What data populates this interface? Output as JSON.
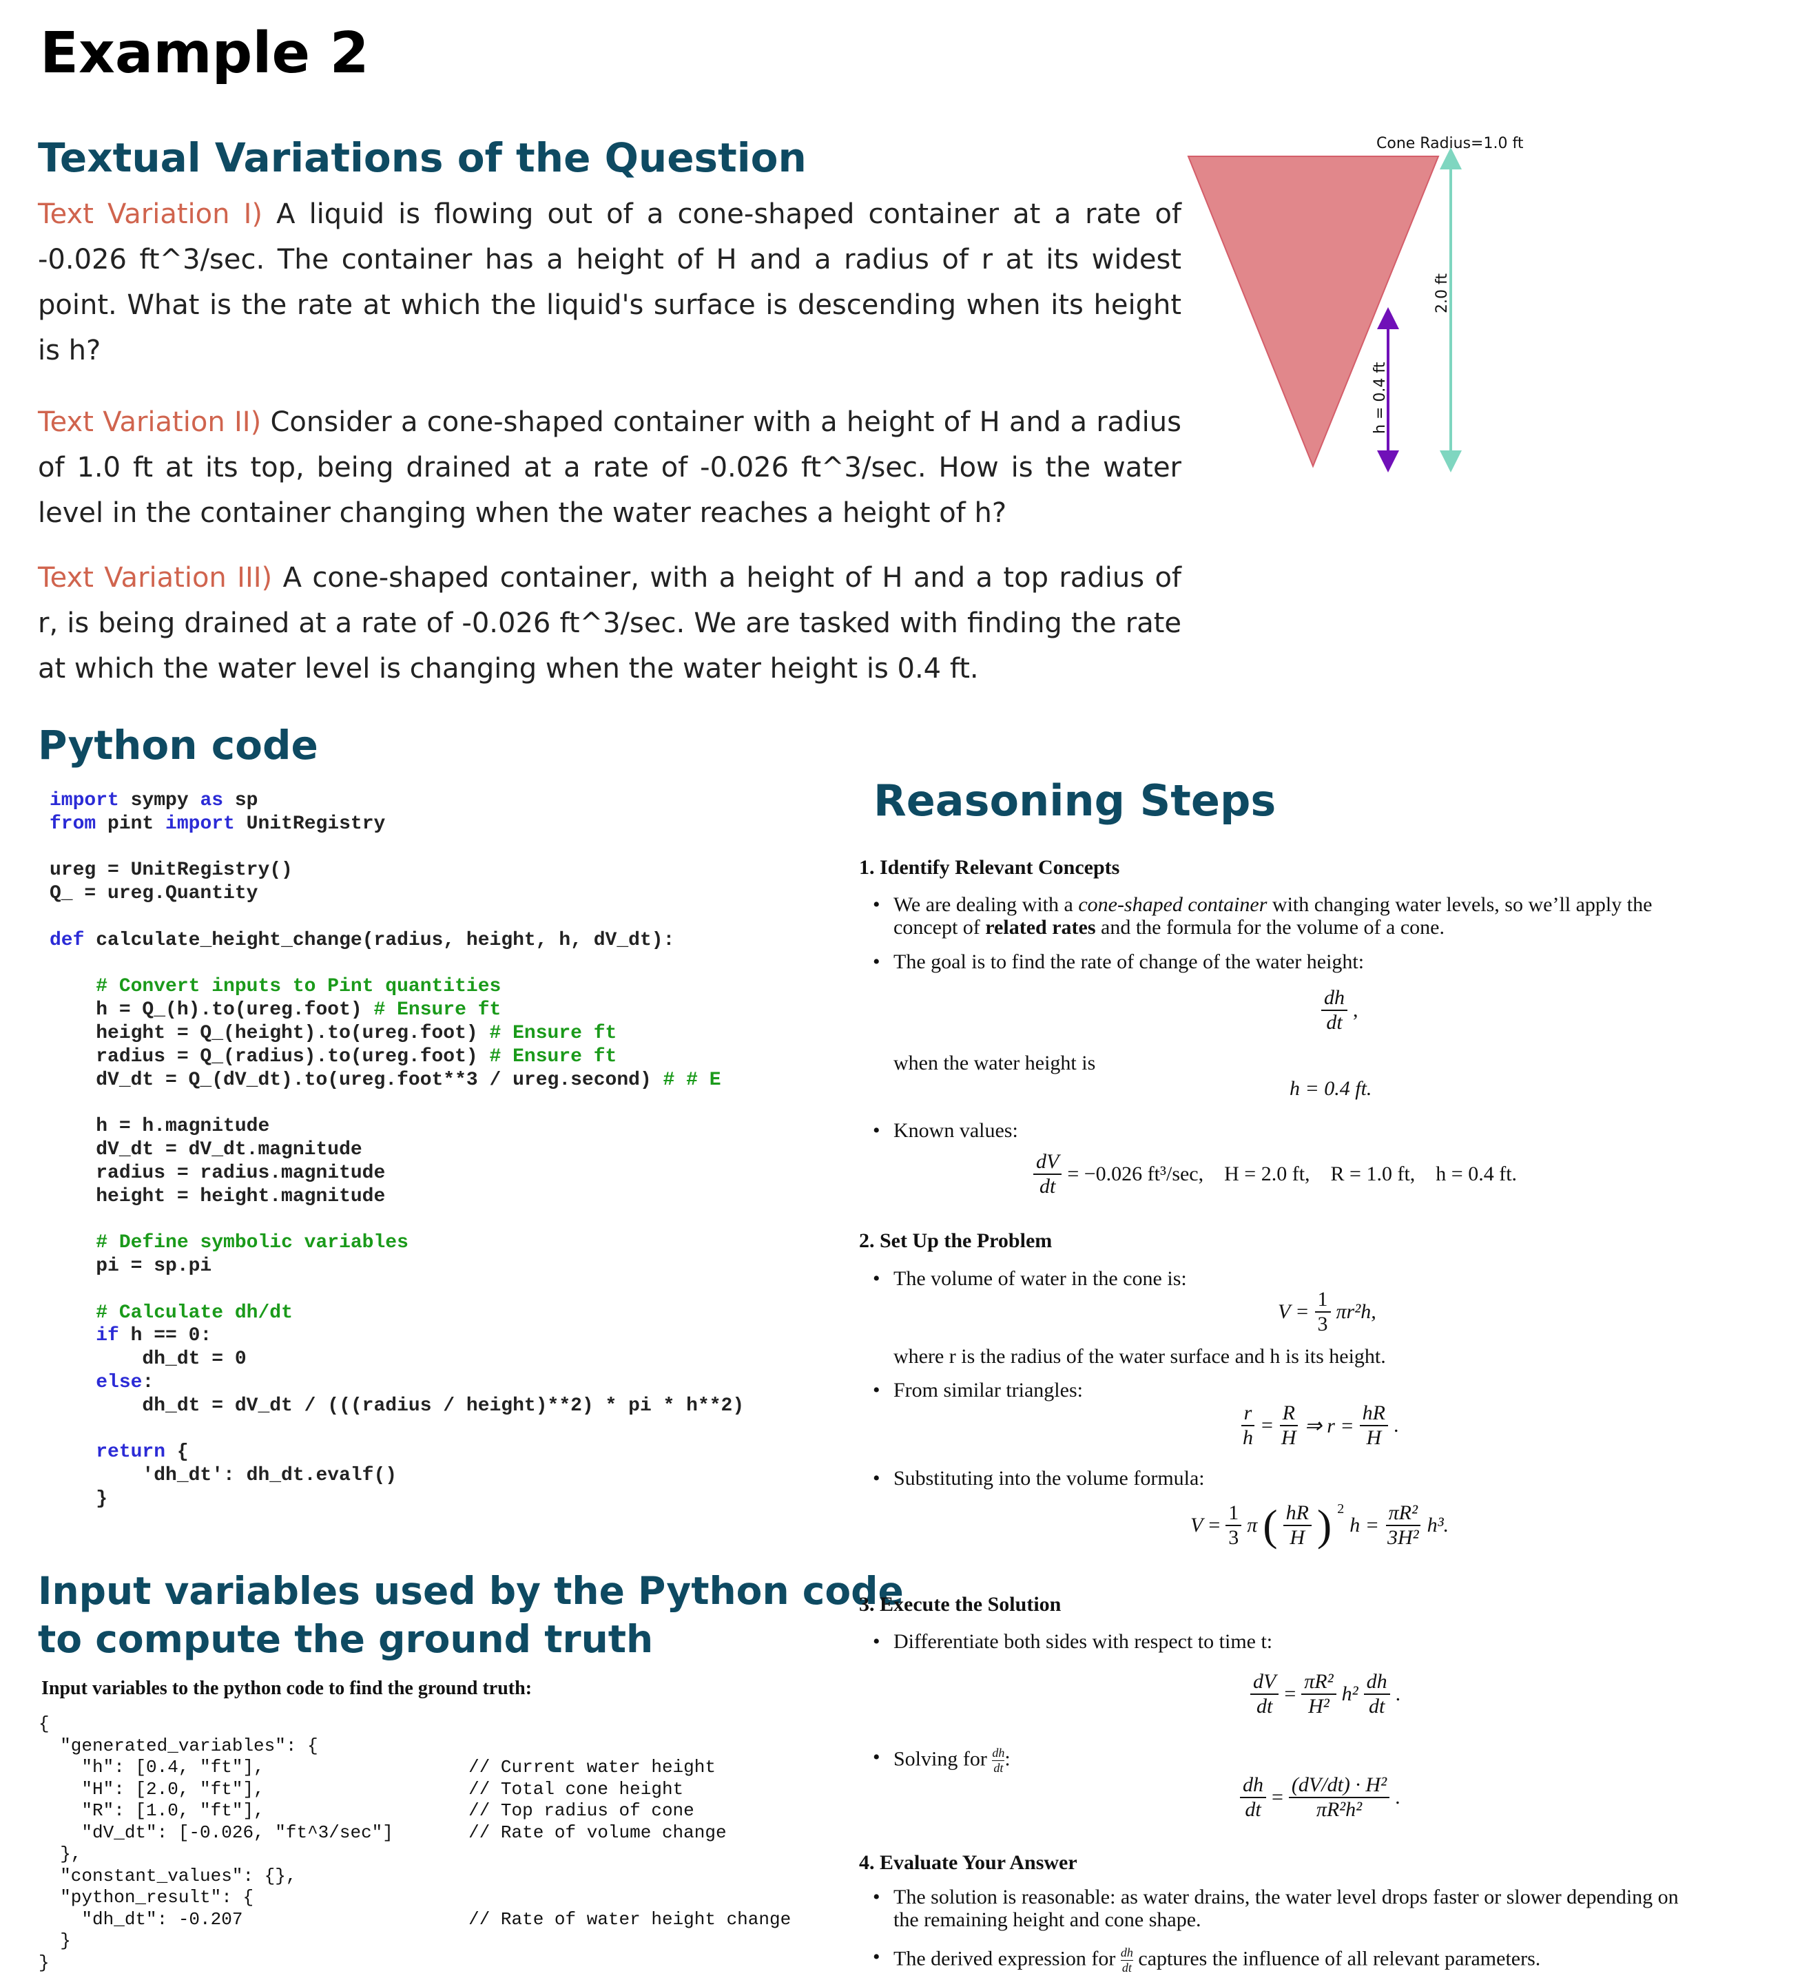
{
  "title": "Example 2",
  "textual": {
    "heading": "Textual Variations of the Question",
    "variations": [
      {
        "label": "Text Variation I)",
        "text": " A liquid is flowing out of a cone-shaped container at a rate of -0.026 ft^3/sec. The container has a height of H and a radius of r at its widest point. What is the rate at which the liquid's surface is descending when its height is h?"
      },
      {
        "label": "Text Variation II)",
        "text": " Consider a cone-shaped container with a height of H and a radius of 1.0 ft at its top, being drained at a rate of -0.026 ft^3/sec. How is the water level in the container changing when the water reaches a height of h?"
      },
      {
        "label": "Text Variation III)",
        "text": " A cone-shaped container, with a height of H and a top radius of r, is being drained at a rate of -0.026 ft^3/sec. We are tasked with finding the rate at which the water level is changing when the water height is 0.4 ft."
      }
    ]
  },
  "diagram": {
    "radius_label": "Cone Radius=1.0 ft",
    "height_label": "2.0 ft",
    "water_label": "h = 0.4 ft",
    "colors": {
      "cone": "#e1878b",
      "water_arrow": "#7010b8",
      "height_arrow": "#7fd6c0"
    }
  },
  "python": {
    "heading": "Python code",
    "lines": [
      "import sympy as sp",
      "from pint import UnitRegistry",
      "",
      "ureg = UnitRegistry()",
      "Q_ = ureg.Quantity",
      "",
      "def calculate_height_change(radius, height, h, dV_dt):",
      "",
      "    # Convert inputs to Pint quantities",
      "    h = Q_(h).to(ureg.foot) # Ensure ft",
      "    height = Q_(height).to(ureg.foot) # Ensure ft",
      "    radius = Q_(radius).to(ureg.foot) # Ensure ft",
      "    dV_dt = Q_(dV_dt).to(ureg.foot**3 / ureg.second) # # E",
      "",
      "    h = h.magnitude",
      "    dV_dt = dV_dt.magnitude",
      "    radius = radius.magnitude",
      "    height = height.magnitude",
      "",
      "    # Define symbolic variables",
      "    pi = sp.pi",
      "",
      "    # Calculate dh/dt",
      "    if h == 0:",
      "        dh_dt = 0",
      "    else:",
      "        dh_dt = dV_dt / (((radius / height)**2) * pi * h**2)",
      "",
      "    return {",
      "        'dh_dt': dh_dt.evalf()",
      "    }"
    ]
  },
  "inputs": {
    "heading_line1": "Input variables used by the Python code",
    "heading_line2": "to compute the ground truth",
    "caption": "Input variables to the python code to find the ground truth:",
    "json_text": "{\n  \"generated_variables\": {\n    \"h\": [0.4, \"ft\"],                   // Current water height\n    \"H\": [2.0, \"ft\"],                   // Total cone height\n    \"R\": [1.0, \"ft\"],                   // Top radius of cone\n    \"dV_dt\": [-0.026, \"ft^3/sec\"]       // Rate of volume change\n  },\n  \"constant_values\": {},\n  \"python_result\": {\n    \"dh_dt\": -0.207                     // Rate of water height change\n  }\n}"
  },
  "reasoning": {
    "heading": "Reasoning Steps",
    "s1": {
      "title": "1. Identify Relevant Concepts",
      "b1_a": "We are dealing with a ",
      "b1_it": "cone-shaped container",
      "b1_b": " with changing water levels, so we’ll apply the",
      "b1_c": "concept of ",
      "b1_bold": "related rates",
      "b1_d": " and the formula for the volume of a cone.",
      "b2": "The goal is to find the rate of change of the water height:",
      "f_dh": "dh",
      "f_dt": "dt",
      "comma": ",",
      "when": "when the water height is",
      "h_eq": "h = 0.4 ft.",
      "b3": "Known values:",
      "known_dV": "dV",
      "known_dt": "dt",
      "known_rest": "= −0.026 ft³/sec,    H = 2.0 ft,    R = 1.0 ft,    h = 0.4 ft."
    },
    "s2": {
      "title": "2. Set Up the Problem",
      "b1": "The volume of water in the cone is:",
      "v_lhs": "V =",
      "one": "1",
      "three": "3",
      "v_rhs": "πr²h,",
      "where": "where r is the radius of the water surface and h is its height.",
      "b2": "From similar triangles:",
      "r": "r",
      "h": "h",
      "R": "R",
      "H": "H",
      "imp": "⇒ r =",
      "hR": "hR",
      "H2": "H",
      "dot": ".",
      "eq": "=",
      "b3": "Substituting into the volume formula:",
      "sub_pi": "π",
      "sub_exp": "2",
      "sub_h": "h =",
      "piR2": "πR²",
      "threeH2": "3H²",
      "h3": "h³."
    },
    "s3": {
      "title": "3. Execute the Solution",
      "b1": "Differentiate both sides with respect to time t:",
      "dV": "dV",
      "dt": "dt",
      "eq": "=",
      "piR2": "πR²",
      "H2": "H²",
      "h2": "h²",
      "dh": "dh",
      "dot": ".",
      "b2": "Solving for ",
      "colon": ":",
      "num": "(dV/dt) · H²",
      "den": "πR²h²"
    },
    "s4": {
      "title": "4. Evaluate Your Answer",
      "b1_a": "The solution is reasonable: as water drains, the water level drops faster or slower depending on",
      "b1_b": "the remaining height and cone shape.",
      "b2_a": "The derived expression for ",
      "b2_b": " captures the influence of all relevant parameters."
    }
  }
}
